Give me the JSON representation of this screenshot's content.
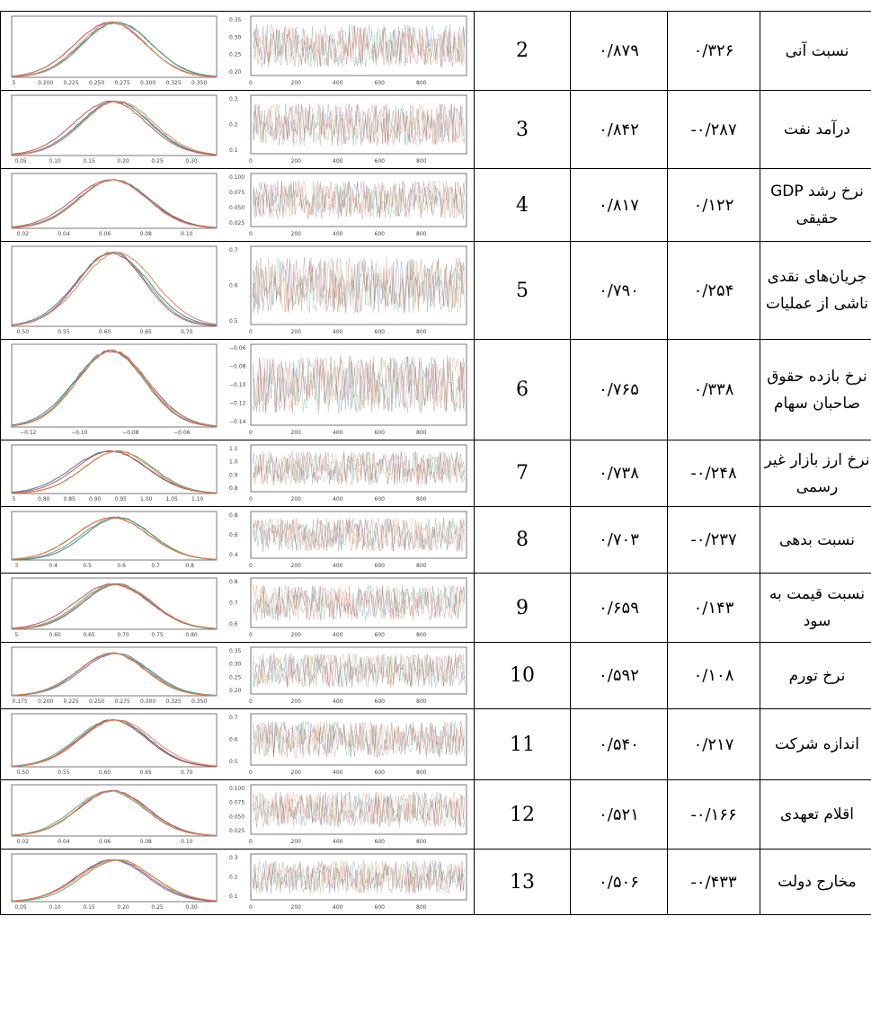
{
  "colors": {
    "blue": "#4c72b0",
    "green": "#55a868",
    "red": "#c44e52",
    "orange": "#dd8452"
  },
  "rows": [
    {
      "num": "2",
      "loading": "۰/۸۷۹",
      "coef": "۰/۳۲۶",
      "name": "نسبت آنی",
      "density_ticks": [
        "5",
        "0.200",
        "0.225",
        "0.250",
        "0.275",
        "0.300",
        "0.325",
        "0.350"
      ],
      "trace_yticks": [
        "0.35",
        "0.30",
        "0.25",
        "0.20"
      ],
      "trace_xticks": [
        "0",
        "200",
        "400",
        "600",
        "800"
      ]
    },
    {
      "num": "3",
      "loading": "۰/۸۴۲",
      "coef": "-۰/۲۸۷",
      "name": "درآمد نفت",
      "density_ticks": [
        "0.05",
        "0.10",
        "0.15",
        "0.20",
        "0.25",
        "0.30"
      ],
      "trace_yticks": [
        "0.3",
        "0.2",
        "0.1"
      ],
      "trace_xticks": [
        "0",
        "200",
        "400",
        "600",
        "800"
      ]
    },
    {
      "num": "4",
      "loading": "۰/۸۱۷",
      "coef": "۰/۱۲۲",
      "name": "نرخ رشد GDP حقیقی",
      "density_ticks": [
        "0.02",
        "0.04",
        "0.06",
        "0.08",
        "0.10"
      ],
      "trace_yticks": [
        "0.100",
        "0.075",
        "0.050",
        "0.025"
      ],
      "trace_xticks": [
        "0",
        "200",
        "400",
        "600",
        "800"
      ]
    },
    {
      "num": "5",
      "loading": "۰/۷۹۰",
      "coef": "۰/۲۵۴",
      "name": "جریان‌های نقدی ناشی از عملیات",
      "density_ticks": [
        "0.50",
        "0.55",
        "0.60",
        "0.65",
        "0.70"
      ],
      "trace_yticks": [
        "0.7",
        "0.6",
        "0.5"
      ],
      "trace_xticks": [
        "0",
        "200",
        "400",
        "600",
        "800"
      ]
    },
    {
      "num": "6",
      "loading": "۰/۷۶۵",
      "coef": "۰/۳۳۸",
      "name": "نرخ بازده حقوق صاحبان سهام",
      "density_ticks": [
        "−0.12",
        "−0.10",
        "−0.08",
        "−0.06"
      ],
      "trace_yticks": [
        "−0.06",
        "−0.08",
        "−0.10",
        "−0.12",
        "−0.14"
      ],
      "trace_xticks": [
        "0",
        "200",
        "400",
        "600",
        "800"
      ]
    },
    {
      "num": "7",
      "loading": "۰/۷۳۸",
      "coef": "-۰/۲۴۸",
      "name": "نرخ ارز بازار غیر رسمی",
      "density_ticks": [
        "5",
        "0.80",
        "0.85",
        "0.90",
        "0.95",
        "1.00",
        "1.05",
        "1.10"
      ],
      "trace_yticks": [
        "1.1",
        "1.0",
        "0.9",
        "0.8"
      ],
      "trace_xticks": [
        "0",
        "200",
        "400",
        "600",
        "800"
      ]
    },
    {
      "num": "8",
      "loading": "۰/۷۰۳",
      "coef": "-۰/۲۳۷",
      "name": "نسبت بدهی",
      "density_ticks": [
        "3",
        "0.4",
        "0.5",
        "0.6",
        "0.7",
        "0.8"
      ],
      "trace_yticks": [
        "0.8",
        "0.6",
        "0.4"
      ],
      "trace_xticks": [
        "0",
        "200",
        "400",
        "600",
        "800"
      ]
    },
    {
      "num": "9",
      "loading": "۰/۶۵۹",
      "coef": "۰/۱۴۳",
      "name": "نسبت قیمت به سود",
      "density_ticks": [
        "5",
        "0.60",
        "0.65",
        "0.70",
        "0.75",
        "0.80"
      ],
      "trace_yticks": [
        "0.8",
        "0.7",
        "0.6"
      ],
      "trace_xticks": [
        "0",
        "200",
        "400",
        "600",
        "800"
      ]
    },
    {
      "num": "10",
      "loading": "۰/۵۹۲",
      "coef": "۰/۱۰۸",
      "name": "نرخ تورم",
      "density_ticks": [
        "0.175",
        "0.200",
        "0.225",
        "0.250",
        "0.275",
        "0.300",
        "0.325",
        "0.350"
      ],
      "trace_yticks": [
        "0.35",
        "0.30",
        "0.25",
        "0.20"
      ],
      "trace_xticks": [
        "0",
        "200",
        "400",
        "600",
        "800"
      ]
    },
    {
      "num": "11",
      "loading": "۰/۵۴۰",
      "coef": "۰/۲۱۷",
      "name": "اندازه شرکت",
      "density_ticks": [
        "0.50",
        "0.55",
        "0.60",
        "0.65",
        "0.70"
      ],
      "trace_yticks": [
        "0.7",
        "0.6",
        "0.5"
      ],
      "trace_xticks": [
        "0",
        "200",
        "400",
        "600",
        "800"
      ]
    },
    {
      "num": "12",
      "loading": "۰/۵۲۱",
      "coef": "-۰/۱۶۶",
      "name": "اقلام تعهدی",
      "density_ticks": [
        "0.02",
        "0.04",
        "0.06",
        "0.08",
        "0.10"
      ],
      "trace_yticks": [
        "0.100",
        "0.075",
        "0.050",
        "0.025"
      ],
      "trace_xticks": [
        "0",
        "200",
        "400",
        "600",
        "800"
      ]
    },
    {
      "num": "13",
      "loading": "۰/۵۰۶",
      "coef": "-۰/۴۳۳",
      "name": "مخارج دولت",
      "density_ticks": [
        "0.05",
        "0.10",
        "0.15",
        "0.20",
        "0.25",
        "0.30"
      ],
      "trace_yticks": [
        "0.3",
        "0.2",
        "0.1"
      ],
      "trace_xticks": [
        "0",
        "200",
        "400",
        "600",
        "800"
      ]
    }
  ]
}
